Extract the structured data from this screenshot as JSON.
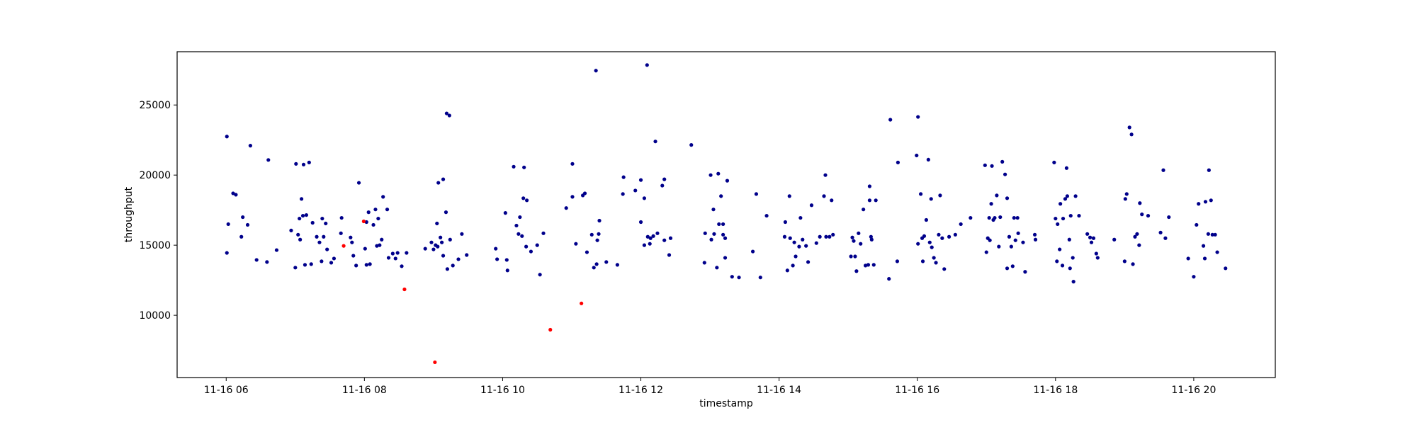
{
  "chart_data": {
    "type": "scatter",
    "x_label": "timestamp",
    "y_label": "throughput",
    "xlim": [
      5.29,
      21.18
    ],
    "ylim": [
      5560,
      28800
    ],
    "xticks": [
      {
        "value": 6,
        "label": "11-16 06"
      },
      {
        "value": 8,
        "label": "11-16 08"
      },
      {
        "value": 10,
        "label": "11-16 10"
      },
      {
        "value": 12,
        "label": "11-16 12"
      },
      {
        "value": 14,
        "label": "11-16 14"
      },
      {
        "value": 16,
        "label": "11-16 16"
      },
      {
        "value": 18,
        "label": "11-16 18"
      },
      {
        "value": 20,
        "label": "11-16 20"
      }
    ],
    "yticks": [
      10000,
      15000,
      20000,
      25000
    ],
    "grid": false,
    "series": [
      {
        "color": "#00008b",
        "x": [
          6.01,
          6.03,
          6.01,
          6.1,
          6.14,
          6.24,
          6.22,
          6.31,
          6.35,
          6.44,
          6.61,
          6.59,
          6.73,
          6.94,
          7.01,
          7.0,
          7.04,
          7.09,
          7.07,
          7.06,
          7.12,
          7.11,
          7.14,
          7.16,
          7.2,
          7.23,
          7.25,
          7.31,
          7.35,
          7.39,
          7.38,
          7.41,
          7.44,
          7.46,
          7.52,
          7.56,
          7.67,
          7.66,
          7.8,
          7.82,
          7.84,
          7.88,
          7.92,
          8.03,
          8.01,
          8.03,
          8.06,
          8.08,
          8.13,
          8.16,
          8.2,
          8.22,
          8.18,
          8.25,
          8.27,
          8.33,
          8.35,
          8.41,
          8.45,
          8.48,
          8.54,
          8.61,
          8.88,
          8.97,
          9.0,
          9.03,
          9.05,
          9.07,
          9.06,
          9.1,
          9.12,
          9.14,
          9.14,
          9.18,
          9.19,
          9.23,
          9.2,
          9.24,
          9.28,
          9.36,
          9.41,
          9.48,
          9.9,
          9.92,
          10.04,
          10.06,
          10.07,
          10.16,
          10.2,
          10.23,
          10.25,
          10.28,
          10.31,
          10.3,
          10.35,
          10.34,
          10.41,
          10.5,
          10.54,
          10.59,
          10.92,
          11.01,
          11.01,
          11.06,
          11.16,
          11.19,
          11.22,
          11.29,
          11.32,
          11.35,
          11.36,
          11.37,
          11.4,
          11.39,
          11.5,
          11.66,
          11.74,
          11.75,
          11.92,
          12.0,
          12.0,
          12.05,
          12.05,
          12.09,
          12.1,
          12.13,
          12.14,
          12.18,
          12.21,
          12.24,
          12.31,
          12.34,
          12.34,
          12.41,
          12.43,
          12.73,
          12.92,
          12.93,
          13.01,
          13.02,
          13.05,
          13.06,
          13.1,
          13.12,
          13.13,
          13.16,
          13.19,
          13.19,
          13.22,
          13.22,
          13.25,
          13.32,
          13.42,
          13.62,
          13.67,
          13.73,
          13.82,
          14.08,
          14.09,
          14.12,
          14.15,
          14.16,
          14.2,
          14.22,
          14.24,
          14.29,
          14.31,
          14.34,
          14.39,
          14.42,
          14.47,
          14.54,
          14.59,
          14.65,
          14.67,
          14.68,
          14.73,
          14.76,
          14.78,
          15.04,
          15.06,
          15.08,
          15.1,
          15.12,
          15.15,
          15.18,
          15.22,
          15.25,
          15.29,
          15.31,
          15.31,
          15.33,
          15.34,
          15.37,
          15.4,
          15.59,
          15.61,
          15.71,
          15.72,
          15.99,
          16.01,
          16.01,
          16.05,
          16.07,
          16.1,
          16.13,
          16.08,
          16.16,
          16.18,
          16.2,
          16.21,
          16.24,
          16.27,
          16.31,
          16.33,
          16.36,
          16.39,
          16.46,
          16.55,
          16.63,
          16.77,
          16.98,
          17.0,
          17.02,
          17.04,
          17.05,
          17.07,
          17.08,
          17.1,
          17.12,
          17.15,
          17.18,
          17.2,
          17.23,
          17.27,
          17.3,
          17.3,
          17.33,
          17.36,
          17.38,
          17.4,
          17.42,
          17.45,
          17.46,
          17.53,
          17.56,
          17.7,
          17.71,
          17.98,
          18.0,
          18.02,
          18.03,
          18.06,
          18.07,
          18.1,
          18.11,
          18.14,
          18.16,
          18.17,
          18.2,
          18.21,
          18.22,
          18.25,
          18.26,
          18.29,
          18.34,
          18.46,
          18.5,
          18.52,
          18.55,
          18.59,
          18.61,
          18.85,
          19.0,
          19.01,
          19.03,
          19.07,
          19.1,
          19.12,
          19.15,
          19.18,
          19.21,
          19.22,
          19.25,
          19.34,
          19.52,
          19.56,
          19.59,
          19.64,
          19.92,
          20.0,
          20.04,
          20.07,
          20.14,
          20.16,
          20.17,
          20.22,
          20.21,
          20.25,
          20.27,
          20.31,
          20.34,
          20.46
        ],
        "values": [
          22750,
          16500,
          14450,
          18700,
          18600,
          17000,
          15600,
          16450,
          22100,
          13950,
          21080,
          13800,
          14650,
          16050,
          20800,
          13400,
          15750,
          18300,
          15400,
          16900,
          20750,
          17100,
          13600,
          17150,
          20900,
          13650,
          16600,
          15600,
          15200,
          16900,
          13850,
          15600,
          16550,
          14700,
          13750,
          14050,
          16950,
          15850,
          15550,
          15200,
          14250,
          13550,
          19450,
          16650,
          14750,
          13600,
          17350,
          13650,
          16450,
          17550,
          16900,
          15000,
          14950,
          15400,
          18450,
          17550,
          14100,
          14400,
          14050,
          14450,
          13500,
          14450,
          14750,
          15200,
          14700,
          15000,
          16550,
          19450,
          14900,
          15550,
          15200,
          19700,
          14250,
          17350,
          24400,
          24250,
          13300,
          15400,
          13550,
          14000,
          15800,
          14300,
          14750,
          14000,
          17300,
          13950,
          13200,
          20600,
          16400,
          15800,
          17000,
          15650,
          20550,
          18350,
          18200,
          14900,
          14550,
          15000,
          12900,
          15850,
          17650,
          18450,
          20800,
          15100,
          18550,
          18700,
          14500,
          15750,
          13400,
          27450,
          13650,
          15350,
          16750,
          15800,
          13800,
          13600,
          18650,
          19850,
          18900,
          19650,
          16650,
          18350,
          15000,
          27850,
          15600,
          15100,
          15500,
          15650,
          22400,
          15850,
          19250,
          19700,
          15350,
          14300,
          15500,
          22150,
          13750,
          15850,
          20000,
          15400,
          17550,
          15800,
          13400,
          20100,
          16500,
          18500,
          15750,
          16500,
          14100,
          15500,
          19600,
          12750,
          12700,
          14550,
          18650,
          12700,
          17100,
          15600,
          16650,
          13200,
          18500,
          15500,
          13550,
          15200,
          14200,
          14900,
          16950,
          15400,
          14950,
          13800,
          17850,
          15150,
          15600,
          18500,
          20000,
          15600,
          15600,
          18200,
          15750,
          14200,
          15550,
          15300,
          14200,
          13150,
          15850,
          15100,
          17550,
          13550,
          13600,
          18200,
          19200,
          15600,
          15400,
          13600,
          18200,
          12600,
          23950,
          13850,
          20900,
          21400,
          24150,
          15100,
          18650,
          15500,
          15650,
          16800,
          13850,
          21100,
          15200,
          18300,
          14850,
          14100,
          13750,
          15750,
          18550,
          15500,
          13300,
          15600,
          15750,
          16500,
          16950,
          20700,
          14500,
          15500,
          16950,
          15350,
          17950,
          20650,
          16800,
          16950,
          18550,
          14900,
          17000,
          20950,
          20050,
          18350,
          13350,
          15600,
          14900,
          13500,
          16950,
          15350,
          16950,
          15850,
          15200,
          13100,
          15750,
          15400,
          20900,
          16900,
          13850,
          16500,
          14700,
          17950,
          13550,
          16900,
          18300,
          20500,
          18500,
          15400,
          13350,
          17100,
          14100,
          12400,
          18500,
          17100,
          15800,
          15550,
          15200,
          15500,
          14400,
          14100,
          15400,
          13850,
          18300,
          18650,
          23400,
          22900,
          13650,
          15600,
          15800,
          15000,
          18000,
          17200,
          17100,
          15900,
          20350,
          15500,
          17000,
          14050,
          12750,
          16450,
          17950,
          14950,
          14050,
          18100,
          20350,
          15800,
          18200,
          15750,
          15750,
          14500,
          13350
        ]
      },
      {
        "color": "#ff0000",
        "x": [
          7.7,
          7.99,
          8.58,
          9.02,
          10.69,
          11.14
        ],
        "values": [
          14950,
          16700,
          11850,
          6650,
          8970,
          10850
        ]
      }
    ]
  }
}
